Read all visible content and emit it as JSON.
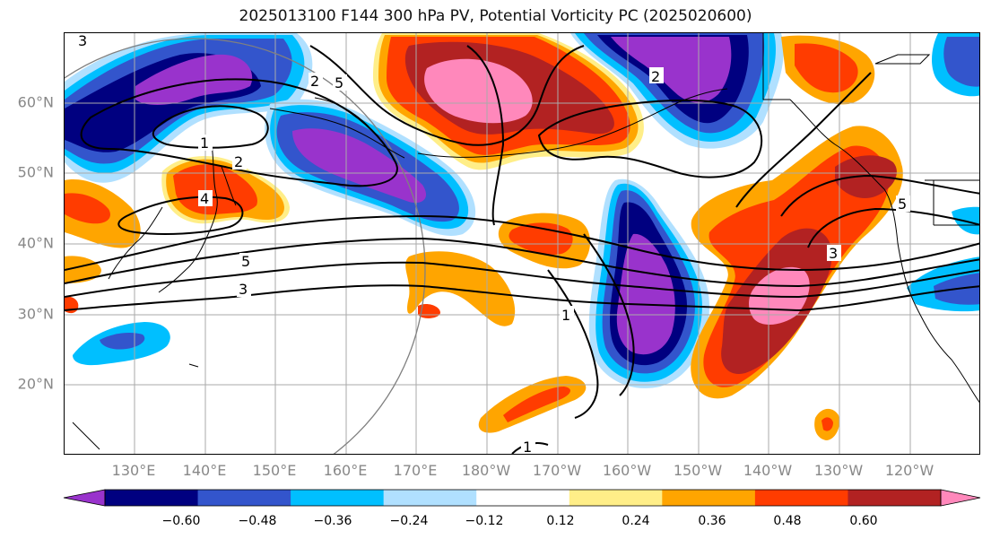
{
  "title": "2025013100 F144 300 hPa PV, Potential Vorticity PC (2025020600)",
  "map": {
    "lat_labels": [
      "60°N",
      "50°N",
      "40°N",
      "30°N",
      "20°N"
    ],
    "lon_labels": [
      "130°E",
      "140°E",
      "150°E",
      "160°E",
      "170°E",
      "180°W",
      "170°W",
      "160°W",
      "150°W",
      "140°W",
      "130°W",
      "120°W"
    ],
    "contour_labels": [
      "3",
      "2",
      "1",
      "2",
      "4",
      "5",
      "5",
      "3",
      "2",
      "5",
      "3",
      "1",
      "1"
    ]
  },
  "colorbar": {
    "colors": [
      "#9933cc",
      "#000080",
      "#3355cc",
      "#00bfff",
      "#b0e0ff",
      "#ffffff",
      "#ffee88",
      "#ffa500",
      "#ff3c00",
      "#b22222",
      "#ff88bb"
    ],
    "tick_labels": [
      "−0.60",
      "−0.48",
      "−0.36",
      "−0.24",
      "−0.12",
      "0.12",
      "0.24",
      "0.36",
      "0.48",
      "0.60"
    ]
  }
}
